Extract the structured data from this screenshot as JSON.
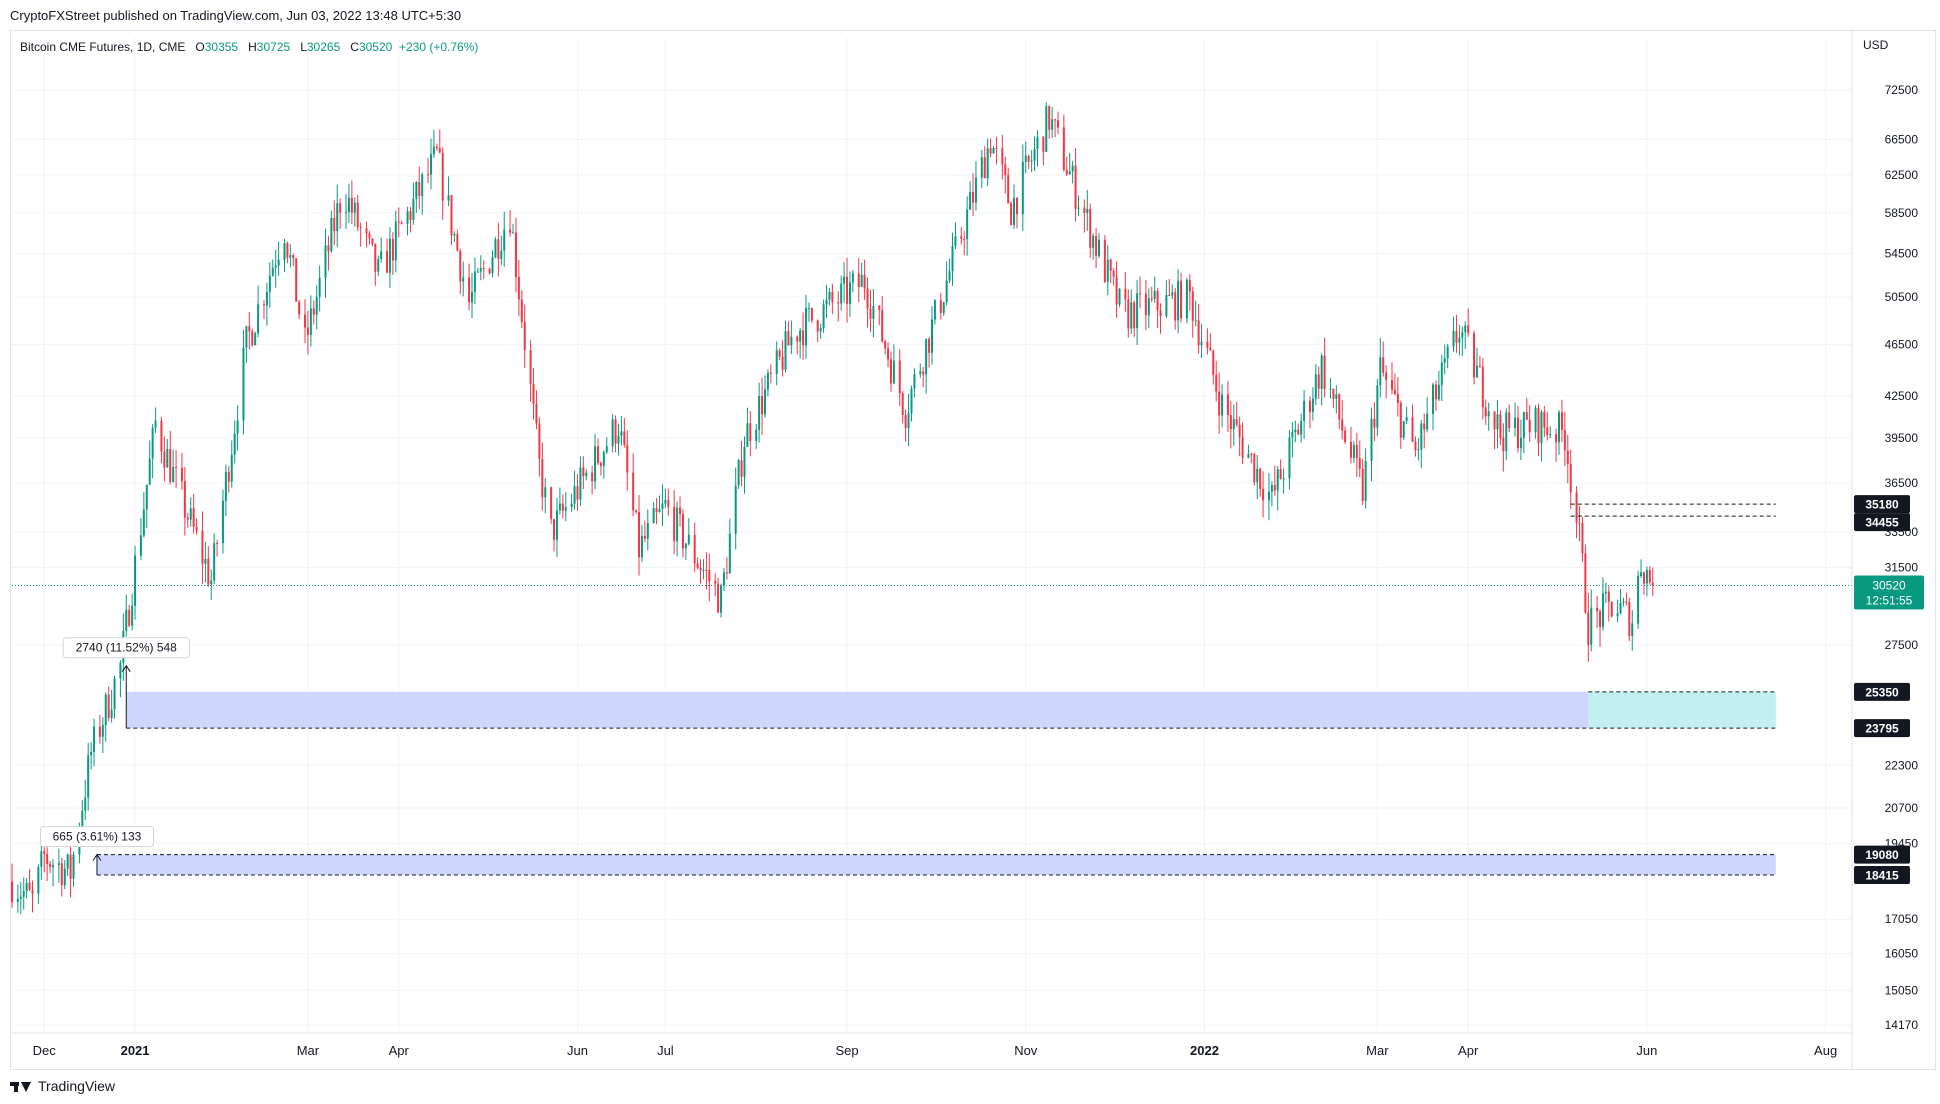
{
  "header": {
    "published": "CryptoFXStreet published on TradingView.com, Jun 03, 2022 13:48 UTC+5:30"
  },
  "legend": {
    "symbol": "Bitcoin CME Futures, 1D, CME",
    "o_label": "O",
    "o_value": "30355",
    "h_label": "H",
    "h_value": "30725",
    "l_label": "L",
    "l_value": "30265",
    "c_label": "C",
    "c_value": "30520",
    "change": "+230 (+0.76%)"
  },
  "axis": {
    "currency": "USD"
  },
  "footer": {
    "brand": "TradingView"
  },
  "colors": {
    "up": "#089981",
    "down": "#f23645",
    "zone": "#c5cffb",
    "zone_recent": "#b9ecef",
    "last_price": "#089981",
    "label_box": "#131722"
  },
  "chart_data": {
    "type": "candlestick",
    "title": "",
    "xlabel": "",
    "ylabel": "",
    "y_scale": "log",
    "ylim": [
      14000,
      78000
    ],
    "x_range": [
      "2020-11-20",
      "2022-08-10"
    ],
    "grid": true,
    "y_ticks": [
      72500,
      66500,
      62500,
      58500,
      54500,
      50500,
      46500,
      42500,
      39500,
      36500,
      33500,
      31500,
      27500,
      22300,
      20700,
      19450,
      17050,
      16050,
      15050,
      14170
    ],
    "x_ticks": [
      {
        "label": "Dec",
        "date": "2020-12-01"
      },
      {
        "label": "2021",
        "date": "2021-01-01"
      },
      {
        "label": "Mar",
        "date": "2021-03-01"
      },
      {
        "label": "Apr",
        "date": "2021-04-01"
      },
      {
        "label": "Jun",
        "date": "2021-06-01"
      },
      {
        "label": "Jul",
        "date": "2021-07-01"
      },
      {
        "label": "Sep",
        "date": "2021-09-01"
      },
      {
        "label": "Nov",
        "date": "2021-11-01"
      },
      {
        "label": "2022",
        "date": "2022-01-01"
      },
      {
        "label": "Mar",
        "date": "2022-03-01"
      },
      {
        "label": "Apr",
        "date": "2022-04-01"
      },
      {
        "label": "Jun",
        "date": "2022-06-01"
      },
      {
        "label": "Aug",
        "date": "2022-08-01"
      }
    ],
    "price_path": [
      [
        "2020-11-20",
        18200
      ],
      [
        "2020-11-27",
        17600
      ],
      [
        "2020-12-01",
        19000
      ],
      [
        "2020-12-10",
        18500
      ],
      [
        "2020-12-17",
        22800
      ],
      [
        "2020-12-27",
        26500
      ],
      [
        "2021-01-08",
        40500
      ],
      [
        "2021-01-15",
        36500
      ],
      [
        "2021-01-27",
        30800
      ],
      [
        "2021-02-08",
        46500
      ],
      [
        "2021-02-21",
        57000
      ],
      [
        "2021-02-28",
        46500
      ],
      [
        "2021-03-13",
        61000
      ],
      [
        "2021-03-25",
        52500
      ],
      [
        "2021-04-14",
        64500
      ],
      [
        "2021-04-25",
        50000
      ],
      [
        "2021-05-09",
        58500
      ],
      [
        "2021-05-19",
        37500
      ],
      [
        "2021-05-23",
        33500
      ],
      [
        "2021-06-15",
        40500
      ],
      [
        "2021-06-22",
        32500
      ],
      [
        "2021-07-01",
        35000
      ],
      [
        "2021-07-20",
        29800
      ],
      [
        "2021-07-28",
        39500
      ],
      [
        "2021-08-14",
        47500
      ],
      [
        "2021-09-07",
        52000
      ],
      [
        "2021-09-21",
        41500
      ],
      [
        "2021-10-08",
        54500
      ],
      [
        "2021-10-20",
        66500
      ],
      [
        "2021-10-27",
        59000
      ],
      [
        "2021-11-09",
        69000
      ],
      [
        "2021-11-26",
        54500
      ],
      [
        "2021-12-04",
        49000
      ],
      [
        "2021-12-27",
        50500
      ],
      [
        "2022-01-07",
        41800
      ],
      [
        "2022-01-24",
        35500
      ],
      [
        "2022-02-10",
        44800
      ],
      [
        "2022-02-24",
        36000
      ],
      [
        "2022-03-02",
        44500
      ],
      [
        "2022-03-14",
        38500
      ],
      [
        "2022-03-29",
        47800
      ],
      [
        "2022-04-12",
        39800
      ],
      [
        "2022-04-25",
        40500
      ],
      [
        "2022-05-04",
        39800
      ],
      [
        "2022-05-09",
        33000
      ],
      [
        "2022-05-12",
        28500
      ],
      [
        "2022-05-20",
        29500
      ],
      [
        "2022-05-27",
        28800
      ],
      [
        "2022-05-30",
        31800
      ],
      [
        "2022-06-03",
        30520
      ]
    ],
    "zones": [
      {
        "top": 25350,
        "bottom": 23795,
        "from": "2020-12-29",
        "to": "2022-05-12"
      },
      {
        "top": 25350,
        "bottom": 23795,
        "from": "2022-05-12",
        "to": "2022-07-15",
        "recent": true
      },
      {
        "top": 19080,
        "bottom": 18415,
        "from": "2020-12-19",
        "to": "2022-07-15"
      }
    ],
    "level_lines": [
      {
        "value": 35180,
        "from": "2022-05-06",
        "to": "2022-07-15"
      },
      {
        "value": 34455,
        "from": "2022-05-06",
        "to": "2022-07-15"
      },
      {
        "value": 25350,
        "from": "2022-05-12",
        "to": "2022-07-15"
      },
      {
        "value": 23795,
        "from": "2020-12-29",
        "to": "2022-07-15"
      },
      {
        "value": 19080,
        "from": "2020-12-19",
        "to": "2022-07-15"
      },
      {
        "value": 18415,
        "from": "2020-12-19",
        "to": "2022-07-15"
      }
    ],
    "price_labels": [
      {
        "text": "35180",
        "value": 35180
      },
      {
        "text": "34455",
        "value": 34455
      },
      {
        "text": "25350",
        "value": 25350
      },
      {
        "text": "23795",
        "value": 23795
      },
      {
        "text": "19080",
        "value": 19080
      },
      {
        "text": "18415",
        "value": 18415
      }
    ],
    "last_price": {
      "text": "30520",
      "countdown": "12:51:55",
      "value": 30520
    },
    "measures": [
      {
        "text": "2740 (11.52%) 548",
        "date": "2020-12-29",
        "from": 23795,
        "to": 26535
      },
      {
        "text": "665 (3.61%) 133",
        "date": "2020-12-19",
        "from": 18415,
        "to": 19080
      }
    ]
  }
}
